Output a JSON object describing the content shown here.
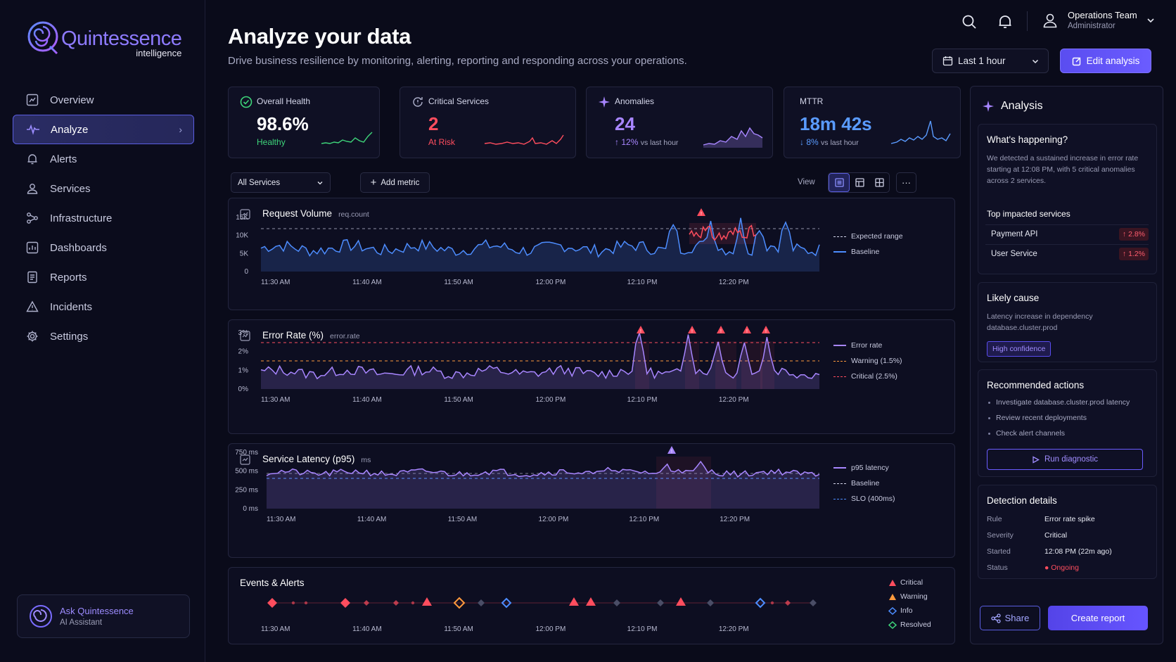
{
  "brand": {
    "name": "Quintessence",
    "tagline": "intelligence"
  },
  "sidebar": {
    "items": [
      {
        "label": "Overview",
        "icon": "chart-square-icon"
      },
      {
        "label": "Analyze",
        "icon": "pulse-sparkle-icon",
        "active": true
      },
      {
        "label": "Alerts",
        "icon": "bell-icon"
      },
      {
        "label": "Services",
        "icon": "people-icon"
      },
      {
        "label": "Infrastructure",
        "icon": "nodes-icon"
      },
      {
        "label": "Dashboards",
        "icon": "dashboard-icon"
      },
      {
        "label": "Reports",
        "icon": "report-icon"
      },
      {
        "label": "Incidents",
        "icon": "warning-triangle-icon"
      },
      {
        "label": "Settings",
        "icon": "gear-icon"
      }
    ],
    "assistant": {
      "title": "Ask Quintessence",
      "subtitle": "AI Assistant"
    }
  },
  "header": {
    "title": "Analyze your data",
    "subtitle": "Drive business resilience by monitoring, alerting, reporting and responding across your operations.",
    "user": {
      "name": "Operations Team",
      "role": "Administrator"
    },
    "time_range": "Last 1 hour",
    "edit_label": "Edit analysis"
  },
  "kpis": [
    {
      "label": "Overall Health",
      "value": "98.6%",
      "sub": "Healthy",
      "color": "#3ed57a"
    },
    {
      "label": "Critical Services",
      "value": "2",
      "sub": "At Risk",
      "color": "#ff4d5e"
    },
    {
      "label": "Anomalies",
      "value": "24",
      "delta": "12%",
      "delta_suffix": "vs last hour",
      "color": "#a886ff"
    },
    {
      "label": "MTTR",
      "value": "18m 42s",
      "delta": "8%",
      "delta_suffix": "vs last hour",
      "color": "#5a9bff"
    }
  ],
  "toolbar": {
    "service_filter": "All Services",
    "add_metric": "Add metric",
    "view_label": "View"
  },
  "charts": {
    "request_volume": {
      "title": "Request Volume",
      "unit": "req.count",
      "y_ticks": [
        "15K",
        "10K",
        "5K",
        "0"
      ],
      "x_ticks": [
        "11:30 AM",
        "11:40 AM",
        "11:50 AM",
        "12:00 PM",
        "12:10 PM",
        "12:20 PM"
      ],
      "legend": [
        "Expected range",
        "Baseline"
      ]
    },
    "error_rate": {
      "title": "Error Rate (%)",
      "unit": "error.rate",
      "y_ticks": [
        "3%",
        "2%",
        "1%",
        "0%"
      ],
      "x_ticks": [
        "11:30 AM",
        "11:40 AM",
        "11:50 AM",
        "12:00 PM",
        "12:10 PM",
        "12:20 PM"
      ],
      "legend": [
        "Error rate",
        "Warning (1.5%)",
        "Critical (2.5%)"
      ]
    },
    "latency": {
      "title": "Service Latency (p95)",
      "unit": "ms",
      "y_ticks": [
        "750 ms",
        "500 ms",
        "250 ms",
        "0 ms"
      ],
      "x_ticks": [
        "11:30 AM",
        "11:40 AM",
        "11:50 AM",
        "12:00 PM",
        "12:10 PM",
        "12:20 PM"
      ],
      "legend": [
        "p95 latency",
        "Baseline",
        "SLO (400ms)"
      ]
    },
    "events": {
      "title": "Events & Alerts",
      "x_ticks": [
        "11:30 AM",
        "11:40 AM",
        "11:50 AM",
        "12:00 PM",
        "12:10 PM",
        "12:20 PM"
      ],
      "legend": [
        "Critical",
        "Warning",
        "Info",
        "Resolved"
      ]
    }
  },
  "analysis": {
    "title": "Analysis",
    "happening": {
      "title": "What's happening?",
      "text": "We detected a sustained increase in error rate starting at 12:08 PM, with 5 critical anomalies across 2 services."
    },
    "impacted": {
      "title": "Top impacted services",
      "rows": [
        {
          "name": "Payment API",
          "delta": "2.8%"
        },
        {
          "name": "User Service",
          "delta": "1.2%"
        }
      ]
    },
    "cause": {
      "title": "Likely cause",
      "text": "Latency increase in dependency database.cluster.prod",
      "badge": "High confidence"
    },
    "actions": {
      "title": "Recommended actions",
      "items": [
        "Investigate database.cluster.prod latency",
        "Review recent deployments",
        "Check alert channels"
      ],
      "button": "Run diagnostic"
    },
    "detection": {
      "title": "Detection details",
      "rows": [
        {
          "key": "Rule",
          "value": "Error rate spike"
        },
        {
          "key": "Severity",
          "value": "Critical"
        },
        {
          "key": "Started",
          "value": "12:08 PM (22m ago)"
        },
        {
          "key": "Status",
          "value": "Ongoing"
        }
      ]
    },
    "share": "Share",
    "create": "Create report"
  },
  "colors": {
    "accent": "#6b5cff",
    "critical": "#ff4d5e",
    "warning": "#ff9a3d",
    "info": "#4d8dff",
    "resolved": "#3ed57a"
  }
}
